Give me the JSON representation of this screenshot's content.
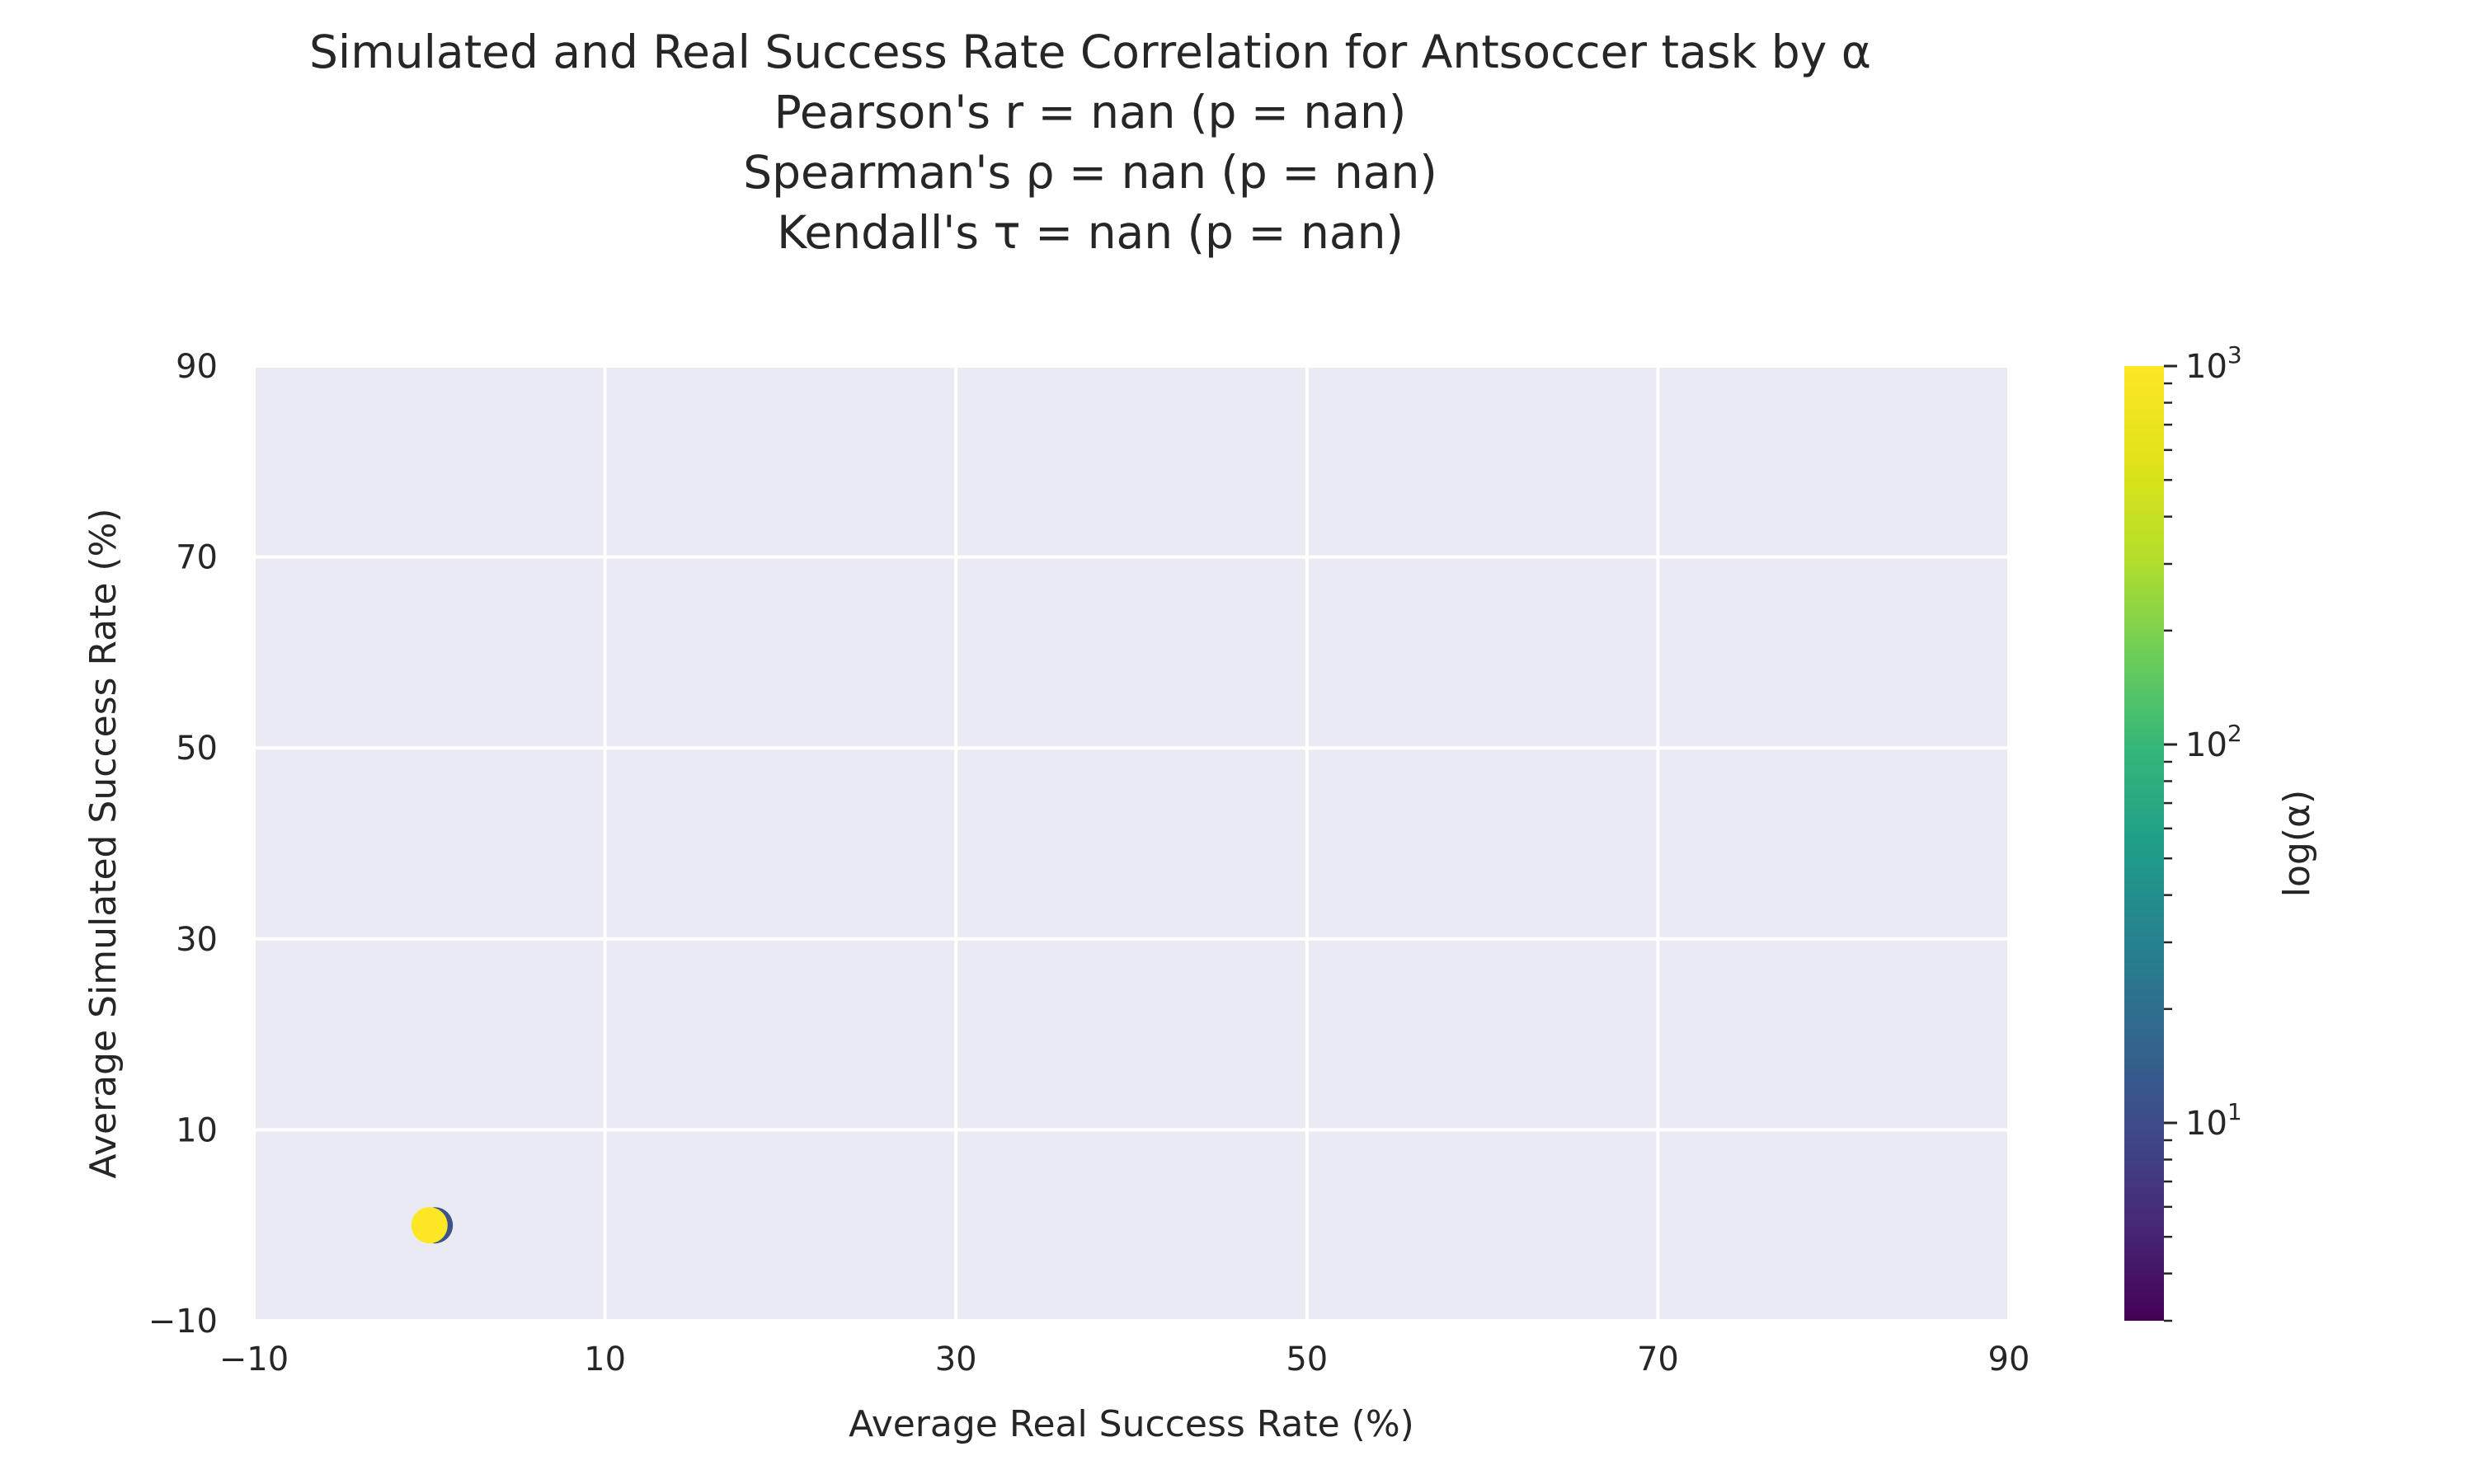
{
  "chart_data": {
    "type": "scatter",
    "title_lines": [
      "Simulated and Real Success Rate Correlation for Antsoccer task by α",
      "Pearson's  r  =    nan (p =  nan)",
      "Spearman's ρ =    nan (p =  nan)",
      "Kendall's  τ =    nan (p =  nan)"
    ],
    "xlabel": "Average Real Success Rate (%)",
    "ylabel": "Average Simulated Success Rate (%)",
    "xlim": [
      -10,
      90
    ],
    "ylim": [
      -10,
      90
    ],
    "xticks": [
      -10,
      10,
      30,
      50,
      70,
      90
    ],
    "yticks": [
      -10,
      10,
      30,
      50,
      70,
      90
    ],
    "xtick_labels": [
      "−10",
      "10",
      "30",
      "50",
      "70",
      "90"
    ],
    "ytick_labels": [
      "−10",
      "10",
      "30",
      "50",
      "70",
      "90"
    ],
    "grid": true,
    "points": [
      {
        "x": 0.3,
        "y": 0,
        "alpha": 10,
        "color": "#3b528b"
      },
      {
        "x": 0,
        "y": 0,
        "alpha": 1000,
        "color": "#fde725"
      }
    ],
    "colorbar": {
      "label": "log(α)",
      "scale": "log",
      "range": [
        3,
        1000
      ],
      "major_ticks": [
        10,
        100,
        1000
      ],
      "major_tick_labels": [
        {
          "base": "10",
          "exp": "1"
        },
        {
          "base": "10",
          "exp": "2"
        },
        {
          "base": "10",
          "exp": "3"
        }
      ],
      "colormap": "viridis"
    },
    "background_color": "#eaeaf2"
  }
}
